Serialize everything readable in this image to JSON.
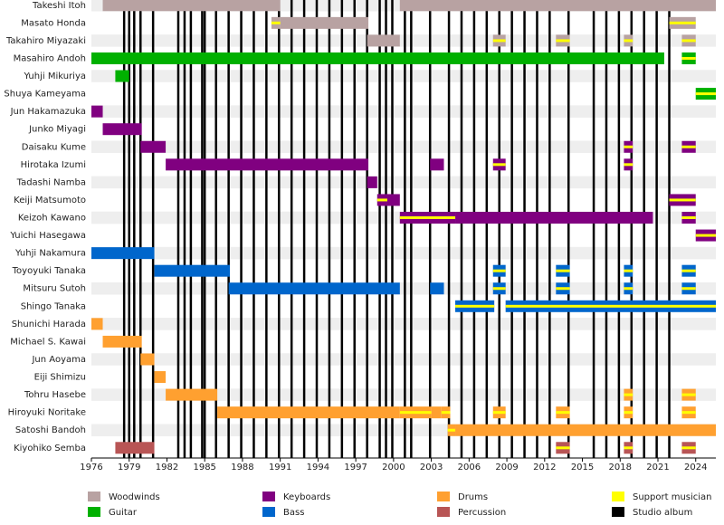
{
  "chart_data": {
    "type": "timeline",
    "xlim": [
      1976,
      2025.6
    ],
    "xticks": [
      1976,
      1979,
      1982,
      1985,
      1988,
      1991,
      1994,
      1997,
      2000,
      2003,
      2006,
      2009,
      2012,
      2015,
      2018,
      2021,
      2024
    ],
    "roles": [
      {
        "name": "Woodwinds",
        "color": "#b8a2a2"
      },
      {
        "name": "Guitar",
        "color": "#00b000"
      },
      {
        "name": "Keyboards",
        "color": "#800080"
      },
      {
        "name": "Bass",
        "color": "#0066cc"
      },
      {
        "name": "Drums",
        "color": "#ffa030"
      },
      {
        "name": "Percussion",
        "color": "#b85555"
      }
    ],
    "support": {
      "name": "Support musician",
      "color": "#ffff00"
    },
    "albums": {
      "name": "Studio album",
      "color": "#000000",
      "years": [
        1978.6,
        1979,
        1979.4,
        1979.9,
        1980.9,
        1982.9,
        1983.4,
        1983.9,
        1984.8,
        1985,
        1985.9,
        1986.9,
        1987.9,
        1988.9,
        1989.9,
        1990.9,
        1991.9,
        1992.9,
        1993.9,
        1994.9,
        1995.9,
        1996.9,
        1997.9,
        1998.9,
        1999.4,
        1999.9,
        2000.9,
        2001.4,
        2002.9,
        2004.4,
        2005.4,
        2006.4,
        2007.4,
        2008.4,
        2009.4,
        2010.4,
        2011.4,
        2012.4,
        2013.9,
        2015.9,
        2016.9,
        2017.9,
        2018.9,
        2019.9,
        2020.9,
        2021.9
      ]
    },
    "members": [
      {
        "name": "Takeshi Itoh",
        "role": "Woodwinds",
        "periods": [
          [
            1976.9,
            1991
          ],
          [
            2000.5,
            2025.6
          ]
        ],
        "support": []
      },
      {
        "name": "Masato Honda",
        "role": "Woodwinds",
        "periods": [
          [
            1991,
            1998
          ]
        ],
        "support": [
          [
            1990.3,
            1991
          ],
          [
            2021.9,
            2024
          ]
        ]
      },
      {
        "name": "Takahiro Miyazaki",
        "role": "Woodwinds",
        "periods": [
          [
            1997.9,
            2000.5
          ]
        ],
        "support": [
          [
            2007.9,
            2008.9
          ],
          [
            2012.9,
            2014
          ],
          [
            2018.3,
            2019
          ],
          [
            2022.9,
            2024
          ]
        ]
      },
      {
        "name": "Masahiro Andoh",
        "role": "Guitar",
        "periods": [
          [
            1976,
            2021.5
          ]
        ],
        "support": [
          [
            2022.9,
            2024
          ]
        ]
      },
      {
        "name": "Yuhji Mikuriya",
        "role": "Guitar",
        "periods": [
          [
            1977.9,
            1979
          ]
        ],
        "support": []
      },
      {
        "name": "Shuya Kameyama",
        "role": "Guitar",
        "periods": [],
        "support": [
          [
            2024,
            2025.6
          ]
        ]
      },
      {
        "name": "Jun Hakamazuka",
        "role": "Keyboards",
        "periods": [
          [
            1976,
            1976.9
          ]
        ],
        "support": []
      },
      {
        "name": "Junko Miyagi",
        "role": "Keyboards",
        "periods": [
          [
            1976.9,
            1980
          ]
        ],
        "support": []
      },
      {
        "name": "Daisaku Kume",
        "role": "Keyboards",
        "periods": [
          [
            1979.9,
            1981.9
          ]
        ],
        "support": [
          [
            2018.3,
            2019
          ],
          [
            2022.9,
            2024
          ]
        ]
      },
      {
        "name": "Hirotaka Izumi",
        "role": "Keyboards",
        "periods": [
          [
            1981.9,
            1998
          ],
          [
            2002.9,
            2004
          ]
        ],
        "support": [
          [
            2007.9,
            2008.9
          ],
          [
            2018.3,
            2019
          ]
        ]
      },
      {
        "name": "Tadashi Namba",
        "role": "Keyboards",
        "periods": [
          [
            1997.9,
            1998.7
          ]
        ],
        "support": []
      },
      {
        "name": "Keiji Matsumoto",
        "role": "Keyboards",
        "periods": [
          [
            1999.5,
            2000.5
          ]
        ],
        "support": [
          [
            1998.7,
            1999.5
          ],
          [
            2021.9,
            2024
          ]
        ]
      },
      {
        "name": "Keizoh Kawano",
        "role": "Keyboards",
        "periods": [
          [
            2004.9,
            2020.6
          ]
        ],
        "support": [
          [
            2000.5,
            2004.9
          ],
          [
            2022.9,
            2024
          ]
        ]
      },
      {
        "name": "Yuichi Hasegawa",
        "role": "Keyboards",
        "periods": [],
        "support": [
          [
            2024,
            2025.6
          ]
        ]
      },
      {
        "name": "Yuhji Nakamura",
        "role": "Bass",
        "periods": [
          [
            1976,
            1981
          ]
        ],
        "support": []
      },
      {
        "name": "Toyoyuki Tanaka",
        "role": "Bass",
        "periods": [
          [
            1981,
            1987
          ]
        ],
        "support": [
          [
            2007.9,
            2008.9
          ],
          [
            2012.9,
            2014
          ],
          [
            2018.3,
            2019
          ],
          [
            2022.9,
            2024
          ]
        ]
      },
      {
        "name": "Mitsuru Sutoh",
        "role": "Bass",
        "periods": [
          [
            1986.9,
            2000.5
          ],
          [
            2002.9,
            2004
          ]
        ],
        "support": [
          [
            2007.9,
            2008.9
          ],
          [
            2012.9,
            2014
          ],
          [
            2018.3,
            2019
          ],
          [
            2022.9,
            2024
          ]
        ]
      },
      {
        "name": "Shingo Tanaka",
        "role": "Bass",
        "periods": [],
        "support": [
          [
            2004.9,
            2008
          ],
          [
            2008.9,
            2025.6
          ]
        ]
      },
      {
        "name": "Shunichi Harada",
        "role": "Drums",
        "periods": [
          [
            1976,
            1976.9
          ]
        ],
        "support": []
      },
      {
        "name": "Michael S. Kawai",
        "role": "Drums",
        "periods": [
          [
            1976.9,
            1980
          ]
        ],
        "support": []
      },
      {
        "name": "Jun Aoyama",
        "role": "Drums",
        "periods": [
          [
            1979.9,
            1981
          ]
        ],
        "support": []
      },
      {
        "name": "Eiji Shimizu",
        "role": "Drums",
        "periods": [
          [
            1981,
            1981.9
          ]
        ],
        "support": []
      },
      {
        "name": "Tohru Hasebe",
        "role": "Drums",
        "periods": [
          [
            1981.9,
            1986
          ]
        ],
        "support": [
          [
            2018.3,
            2019
          ],
          [
            2022.9,
            2024
          ]
        ]
      },
      {
        "name": "Hiroyuki Noritake",
        "role": "Drums",
        "periods": [
          [
            1986,
            2000.5
          ],
          [
            2003,
            2003.8
          ]
        ],
        "support": [
          [
            2000.5,
            2003
          ],
          [
            2003.8,
            2004.5
          ],
          [
            2007.9,
            2008.9
          ],
          [
            2012.9,
            2014
          ],
          [
            2018.3,
            2019
          ],
          [
            2022.9,
            2024
          ]
        ]
      },
      {
        "name": "Satoshi Bandoh",
        "role": "Drums",
        "periods": [
          [
            2004.9,
            2025.6
          ]
        ],
        "support": [
          [
            2004.3,
            2004.9
          ]
        ]
      },
      {
        "name": "Kiyohiko Semba",
        "role": "Percussion",
        "periods": [
          [
            1977.9,
            1981
          ]
        ],
        "support": [
          [
            2012.9,
            2014
          ],
          [
            2018.3,
            2019
          ],
          [
            2022.9,
            2024
          ]
        ]
      }
    ]
  }
}
